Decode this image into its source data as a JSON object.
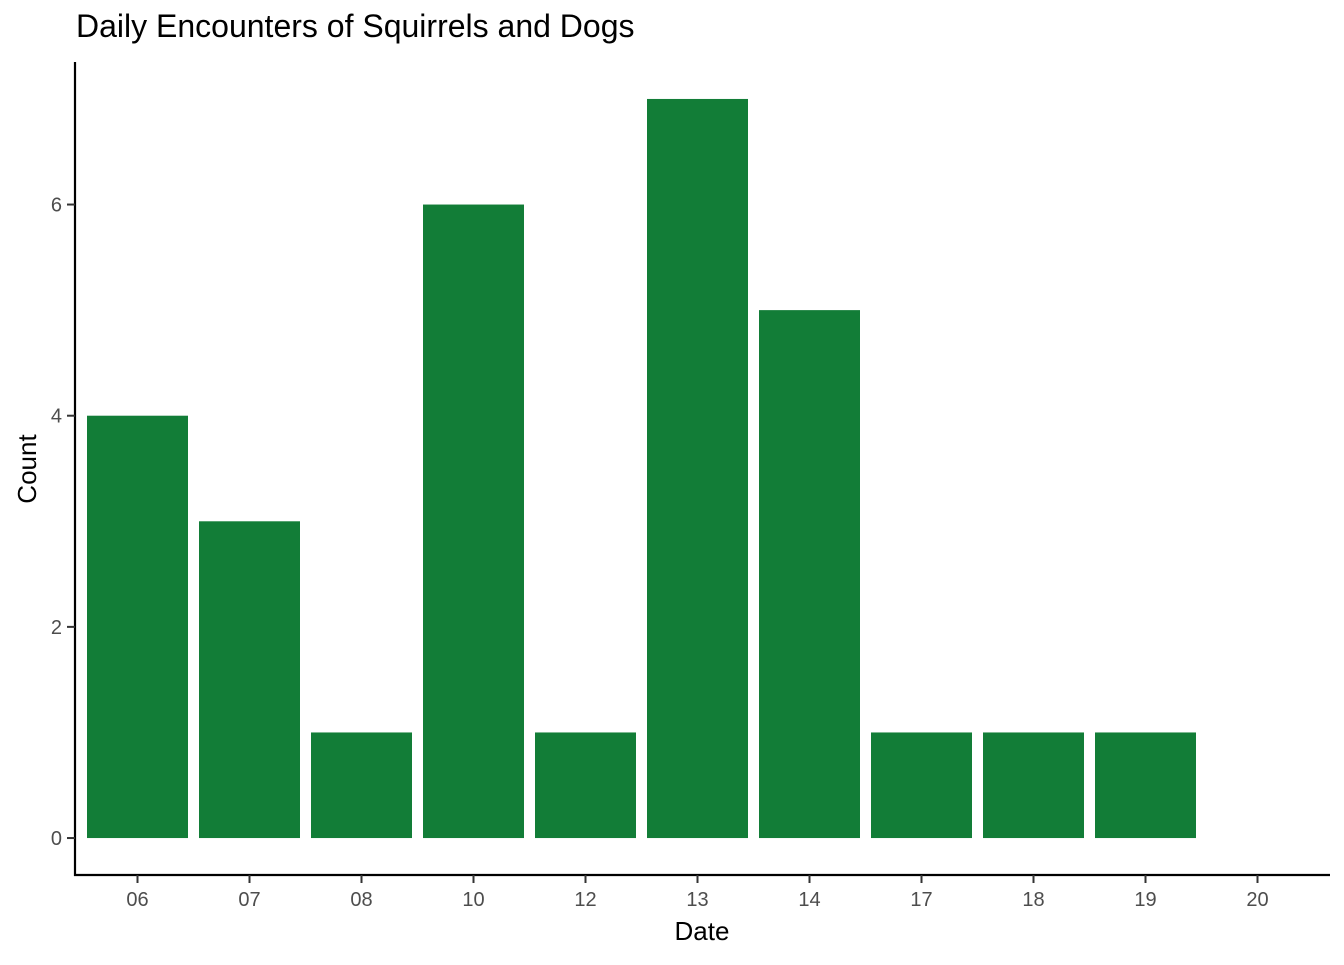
{
  "chart_data": {
    "type": "bar",
    "title": "Daily Encounters of Squirrels and Dogs",
    "xlabel": "Date",
    "ylabel": "Count",
    "categories": [
      "06",
      "07",
      "08",
      "10",
      "12",
      "13",
      "14",
      "17",
      "18",
      "19",
      "20"
    ],
    "values": [
      4,
      3,
      1,
      6,
      1,
      7,
      5,
      1,
      1,
      1,
      0
    ],
    "yticks": [
      0,
      2,
      4,
      6
    ],
    "ylim": [
      -0.35,
      7.35
    ],
    "grid": false,
    "legend": "none",
    "bar_color": "#127d37",
    "axis_color": "#000000"
  }
}
